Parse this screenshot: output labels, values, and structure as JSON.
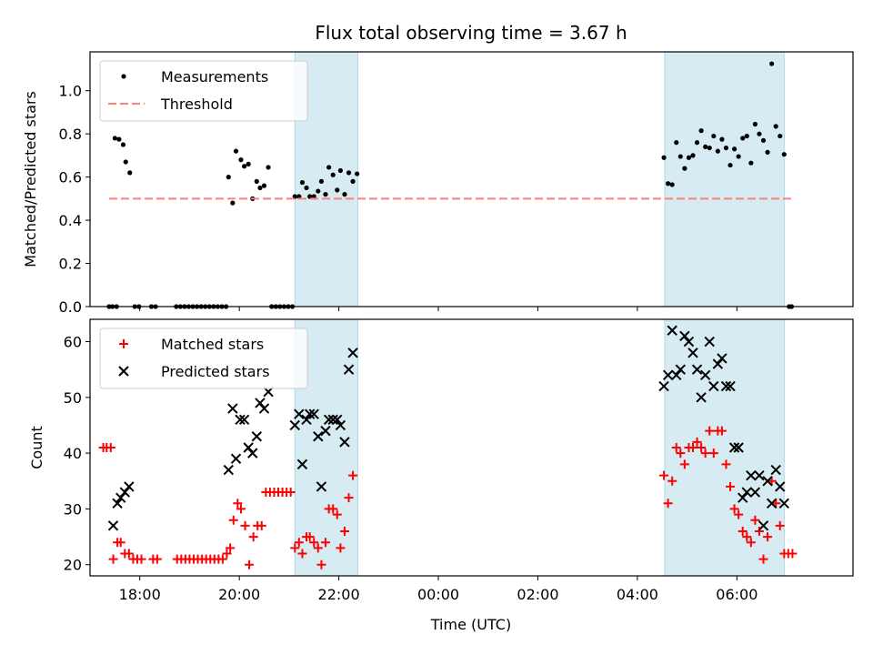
{
  "chart_data": [
    {
      "type": "scatter",
      "title": "Flux total observing time = 3.67 h",
      "xlabel": "",
      "ylabel": "Matched/Predicted stars",
      "xlim": [
        "17:00",
        "08:20"
      ],
      "ylim": [
        0,
        1.18
      ],
      "yticks": [
        "0.0",
        "0.2",
        "0.4",
        "0.6",
        "0.8",
        "1.0"
      ],
      "xticks": [
        "18:00",
        "20:00",
        "22:00",
        "00:00",
        "02:00",
        "04:00",
        "06:00"
      ],
      "show_xtick_labels": false,
      "grid": false,
      "legend": "top-left",
      "legend_entries": [
        "Measurements",
        "Threshold"
      ],
      "shaded_regions": [
        {
          "start": "21:07",
          "end": "22:23",
          "color": "#add8e6"
        },
        {
          "start": "04:33",
          "end": "06:57",
          "color": "#add8e6"
        }
      ],
      "series": [
        {
          "name": "Measurements",
          "marker": "dot",
          "color": "#000000",
          "points": [
            [
              "17:23",
              0
            ],
            [
              "17:27",
              0
            ],
            [
              "17:32",
              0
            ],
            [
              "17:54",
              0
            ],
            [
              "17:59",
              0
            ],
            [
              "18:14",
              0
            ],
            [
              "18:19",
              0
            ],
            [
              "18:44",
              0
            ],
            [
              "18:49",
              0
            ],
            [
              "18:54",
              0
            ],
            [
              "18:59",
              0
            ],
            [
              "19:04",
              0
            ],
            [
              "19:09",
              0
            ],
            [
              "19:14",
              0
            ],
            [
              "19:19",
              0
            ],
            [
              "19:24",
              0
            ],
            [
              "19:29",
              0
            ],
            [
              "19:34",
              0
            ],
            [
              "19:39",
              0
            ],
            [
              "19:44",
              0
            ],
            [
              "20:39",
              0
            ],
            [
              "20:44",
              0
            ],
            [
              "20:49",
              0
            ],
            [
              "20:54",
              0
            ],
            [
              "20:59",
              0
            ],
            [
              "21:04",
              0
            ],
            [
              "07:03",
              0
            ],
            [
              "07:06",
              0
            ],
            [
              "17:30",
              0.78
            ],
            [
              "17:35",
              0.775
            ],
            [
              "17:40",
              0.75
            ],
            [
              "17:43",
              0.67
            ],
            [
              "17:48",
              0.62
            ],
            [
              "19:47",
              0.6
            ],
            [
              "19:52",
              0.48
            ],
            [
              "19:56",
              0.72
            ],
            [
              "20:02",
              0.68
            ],
            [
              "20:06",
              0.65
            ],
            [
              "20:11",
              0.66
            ],
            [
              "20:16",
              0.5
            ],
            [
              "20:21",
              0.58
            ],
            [
              "20:25",
              0.55
            ],
            [
              "20:30",
              0.56
            ],
            [
              "20:35",
              0.645
            ],
            [
              "21:07",
              0.51
            ],
            [
              "21:12",
              0.51
            ],
            [
              "21:16",
              0.575
            ],
            [
              "21:21",
              0.55
            ],
            [
              "21:25",
              0.51
            ],
            [
              "21:30",
              0.51
            ],
            [
              "21:35",
              0.535
            ],
            [
              "21:39",
              0.58
            ],
            [
              "21:44",
              0.52
            ],
            [
              "21:48",
              0.645
            ],
            [
              "21:53",
              0.61
            ],
            [
              "21:58",
              0.54
            ],
            [
              "22:02",
              0.63
            ],
            [
              "22:07",
              0.52
            ],
            [
              "22:12",
              0.62
            ],
            [
              "22:17",
              0.58
            ],
            [
              "22:22",
              0.615
            ],
            [
              "04:32",
              0.69
            ],
            [
              "04:37",
              0.57
            ],
            [
              "04:42",
              0.565
            ],
            [
              "04:47",
              0.76
            ],
            [
              "04:52",
              0.695
            ],
            [
              "04:57",
              0.64
            ],
            [
              "05:02",
              0.69
            ],
            [
              "05:07",
              0.7
            ],
            [
              "05:12",
              0.76
            ],
            [
              "05:17",
              0.815
            ],
            [
              "05:22",
              0.74
            ],
            [
              "05:27",
              0.735
            ],
            [
              "05:32",
              0.79
            ],
            [
              "05:37",
              0.72
            ],
            [
              "05:42",
              0.775
            ],
            [
              "05:47",
              0.735
            ],
            [
              "05:52",
              0.655
            ],
            [
              "05:57",
              0.73
            ],
            [
              "06:02",
              0.695
            ],
            [
              "06:07",
              0.78
            ],
            [
              "06:12",
              0.79
            ],
            [
              "06:17",
              0.665
            ],
            [
              "06:22",
              0.845
            ],
            [
              "06:27",
              0.8
            ],
            [
              "06:32",
              0.77
            ],
            [
              "06:37",
              0.715
            ],
            [
              "06:42",
              1.125
            ],
            [
              "06:47",
              0.835
            ],
            [
              "06:52",
              0.79
            ],
            [
              "06:57",
              0.705
            ]
          ]
        },
        {
          "name": "Threshold",
          "marker": "dashed-line",
          "color": "#ff7f7f",
          "points": [
            [
              "17:23",
              0.5
            ],
            [
              "07:06",
              0.5
            ]
          ]
        }
      ]
    },
    {
      "type": "scatter",
      "title": "",
      "xlabel": "Time (UTC)",
      "ylabel": "Count",
      "xlim": [
        "17:00",
        "08:20"
      ],
      "ylim": [
        18,
        64
      ],
      "yticks": [
        "20",
        "30",
        "40",
        "50",
        "60"
      ],
      "xticks": [
        "18:00",
        "20:00",
        "22:00",
        "00:00",
        "02:00",
        "04:00",
        "06:00"
      ],
      "show_xtick_labels": true,
      "grid": false,
      "legend": "top-left",
      "legend_entries": [
        "Matched stars",
        "Predicted stars"
      ],
      "shaded_regions": [
        {
          "start": "21:07",
          "end": "22:23",
          "color": "#add8e6"
        },
        {
          "start": "04:33",
          "end": "06:57",
          "color": "#add8e6"
        }
      ],
      "series": [
        {
          "name": "Matched stars",
          "marker": "plus",
          "color": "#ff0000",
          "points": [
            [
              "17:16",
              41
            ],
            [
              "17:20",
              41
            ],
            [
              "17:25",
              41
            ],
            [
              "17:28",
              21
            ],
            [
              "17:33",
              24
            ],
            [
              "17:37",
              24
            ],
            [
              "17:42",
              22
            ],
            [
              "17:47",
              22
            ],
            [
              "17:52",
              21
            ],
            [
              "17:57",
              21
            ],
            [
              "18:02",
              21
            ],
            [
              "18:16",
              21
            ],
            [
              "18:21",
              21
            ],
            [
              "18:45",
              21
            ],
            [
              "18:50",
              21
            ],
            [
              "18:55",
              21
            ],
            [
              "19:00",
              21
            ],
            [
              "19:05",
              21
            ],
            [
              "19:10",
              21
            ],
            [
              "19:15",
              21
            ],
            [
              "19:20",
              21
            ],
            [
              "19:25",
              21
            ],
            [
              "19:30",
              21
            ],
            [
              "19:35",
              21
            ],
            [
              "19:40",
              21
            ],
            [
              "19:45",
              22
            ],
            [
              "19:49",
              23
            ],
            [
              "19:53",
              28
            ],
            [
              "19:58",
              31
            ],
            [
              "20:02",
              30
            ],
            [
              "20:07",
              27
            ],
            [
              "20:12",
              20
            ],
            [
              "20:17",
              25
            ],
            [
              "20:22",
              27
            ],
            [
              "20:27",
              27
            ],
            [
              "20:32",
              33
            ],
            [
              "20:37",
              33
            ],
            [
              "20:42",
              33
            ],
            [
              "20:47",
              33
            ],
            [
              "20:52",
              33
            ],
            [
              "20:57",
              33
            ],
            [
              "21:02",
              33
            ],
            [
              "21:07",
              23
            ],
            [
              "21:12",
              24
            ],
            [
              "21:16",
              22
            ],
            [
              "21:21",
              25
            ],
            [
              "21:25",
              25
            ],
            [
              "21:30",
              24
            ],
            [
              "21:35",
              23
            ],
            [
              "21:39",
              20
            ],
            [
              "21:44",
              24
            ],
            [
              "21:48",
              30
            ],
            [
              "21:53",
              30
            ],
            [
              "21:58",
              29
            ],
            [
              "22:02",
              23
            ],
            [
              "22:07",
              26
            ],
            [
              "22:12",
              32
            ],
            [
              "22:17",
              36
            ],
            [
              "04:32",
              36
            ],
            [
              "04:37",
              31
            ],
            [
              "04:42",
              35
            ],
            [
              "04:47",
              41
            ],
            [
              "04:52",
              40
            ],
            [
              "04:57",
              38
            ],
            [
              "05:02",
              41
            ],
            [
              "05:07",
              41
            ],
            [
              "05:12",
              42
            ],
            [
              "05:17",
              41
            ],
            [
              "05:22",
              40
            ],
            [
              "05:27",
              44
            ],
            [
              "05:32",
              40
            ],
            [
              "05:37",
              44
            ],
            [
              "05:42",
              44
            ],
            [
              "05:47",
              38
            ],
            [
              "05:52",
              34
            ],
            [
              "05:57",
              30
            ],
            [
              "06:02",
              29
            ],
            [
              "06:07",
              26
            ],
            [
              "06:12",
              25
            ],
            [
              "06:17",
              24
            ],
            [
              "06:22",
              28
            ],
            [
              "06:27",
              26
            ],
            [
              "06:32",
              21
            ],
            [
              "06:37",
              25
            ],
            [
              "06:42",
              35
            ],
            [
              "06:47",
              31
            ],
            [
              "06:52",
              27
            ],
            [
              "06:57",
              22
            ],
            [
              "07:02",
              22
            ],
            [
              "07:07",
              22
            ]
          ]
        },
        {
          "name": "Predicted stars",
          "marker": "x",
          "color": "#000000",
          "points": [
            [
              "17:28",
              27
            ],
            [
              "17:33",
              31
            ],
            [
              "17:37",
              32
            ],
            [
              "17:42",
              33
            ],
            [
              "17:47",
              34
            ],
            [
              "19:47",
              37
            ],
            [
              "19:52",
              48
            ],
            [
              "19:56",
              39
            ],
            [
              "20:01",
              46
            ],
            [
              "20:06",
              46
            ],
            [
              "20:11",
              41
            ],
            [
              "20:16",
              40
            ],
            [
              "20:21",
              43
            ],
            [
              "20:25",
              49
            ],
            [
              "20:30",
              48
            ],
            [
              "20:35",
              51
            ],
            [
              "21:07",
              45
            ],
            [
              "21:12",
              47
            ],
            [
              "21:16",
              38
            ],
            [
              "21:21",
              46
            ],
            [
              "21:25",
              47
            ],
            [
              "21:30",
              47
            ],
            [
              "21:35",
              43
            ],
            [
              "21:39",
              34
            ],
            [
              "21:44",
              44
            ],
            [
              "21:48",
              46
            ],
            [
              "21:53",
              46
            ],
            [
              "21:58",
              46
            ],
            [
              "22:02",
              45
            ],
            [
              "22:07",
              42
            ],
            [
              "22:12",
              55
            ],
            [
              "22:17",
              58
            ],
            [
              "04:32",
              52
            ],
            [
              "04:37",
              54
            ],
            [
              "04:42",
              62
            ],
            [
              "04:47",
              54
            ],
            [
              "04:52",
              55
            ],
            [
              "04:57",
              61
            ],
            [
              "05:02",
              60
            ],
            [
              "05:07",
              58
            ],
            [
              "05:12",
              55
            ],
            [
              "05:17",
              50
            ],
            [
              "05:22",
              54
            ],
            [
              "05:27",
              60
            ],
            [
              "05:32",
              52
            ],
            [
              "05:37",
              56
            ],
            [
              "05:42",
              57
            ],
            [
              "05:47",
              52
            ],
            [
              "05:52",
              52
            ],
            [
              "05:57",
              41
            ],
            [
              "06:02",
              41
            ],
            [
              "06:07",
              32
            ],
            [
              "06:12",
              33
            ],
            [
              "06:17",
              36
            ],
            [
              "06:22",
              33
            ],
            [
              "06:27",
              36
            ],
            [
              "06:32",
              27
            ],
            [
              "06:37",
              35
            ],
            [
              "06:42",
              31
            ],
            [
              "06:47",
              37
            ],
            [
              "06:52",
              34
            ],
            [
              "06:57",
              31
            ]
          ]
        }
      ]
    }
  ]
}
